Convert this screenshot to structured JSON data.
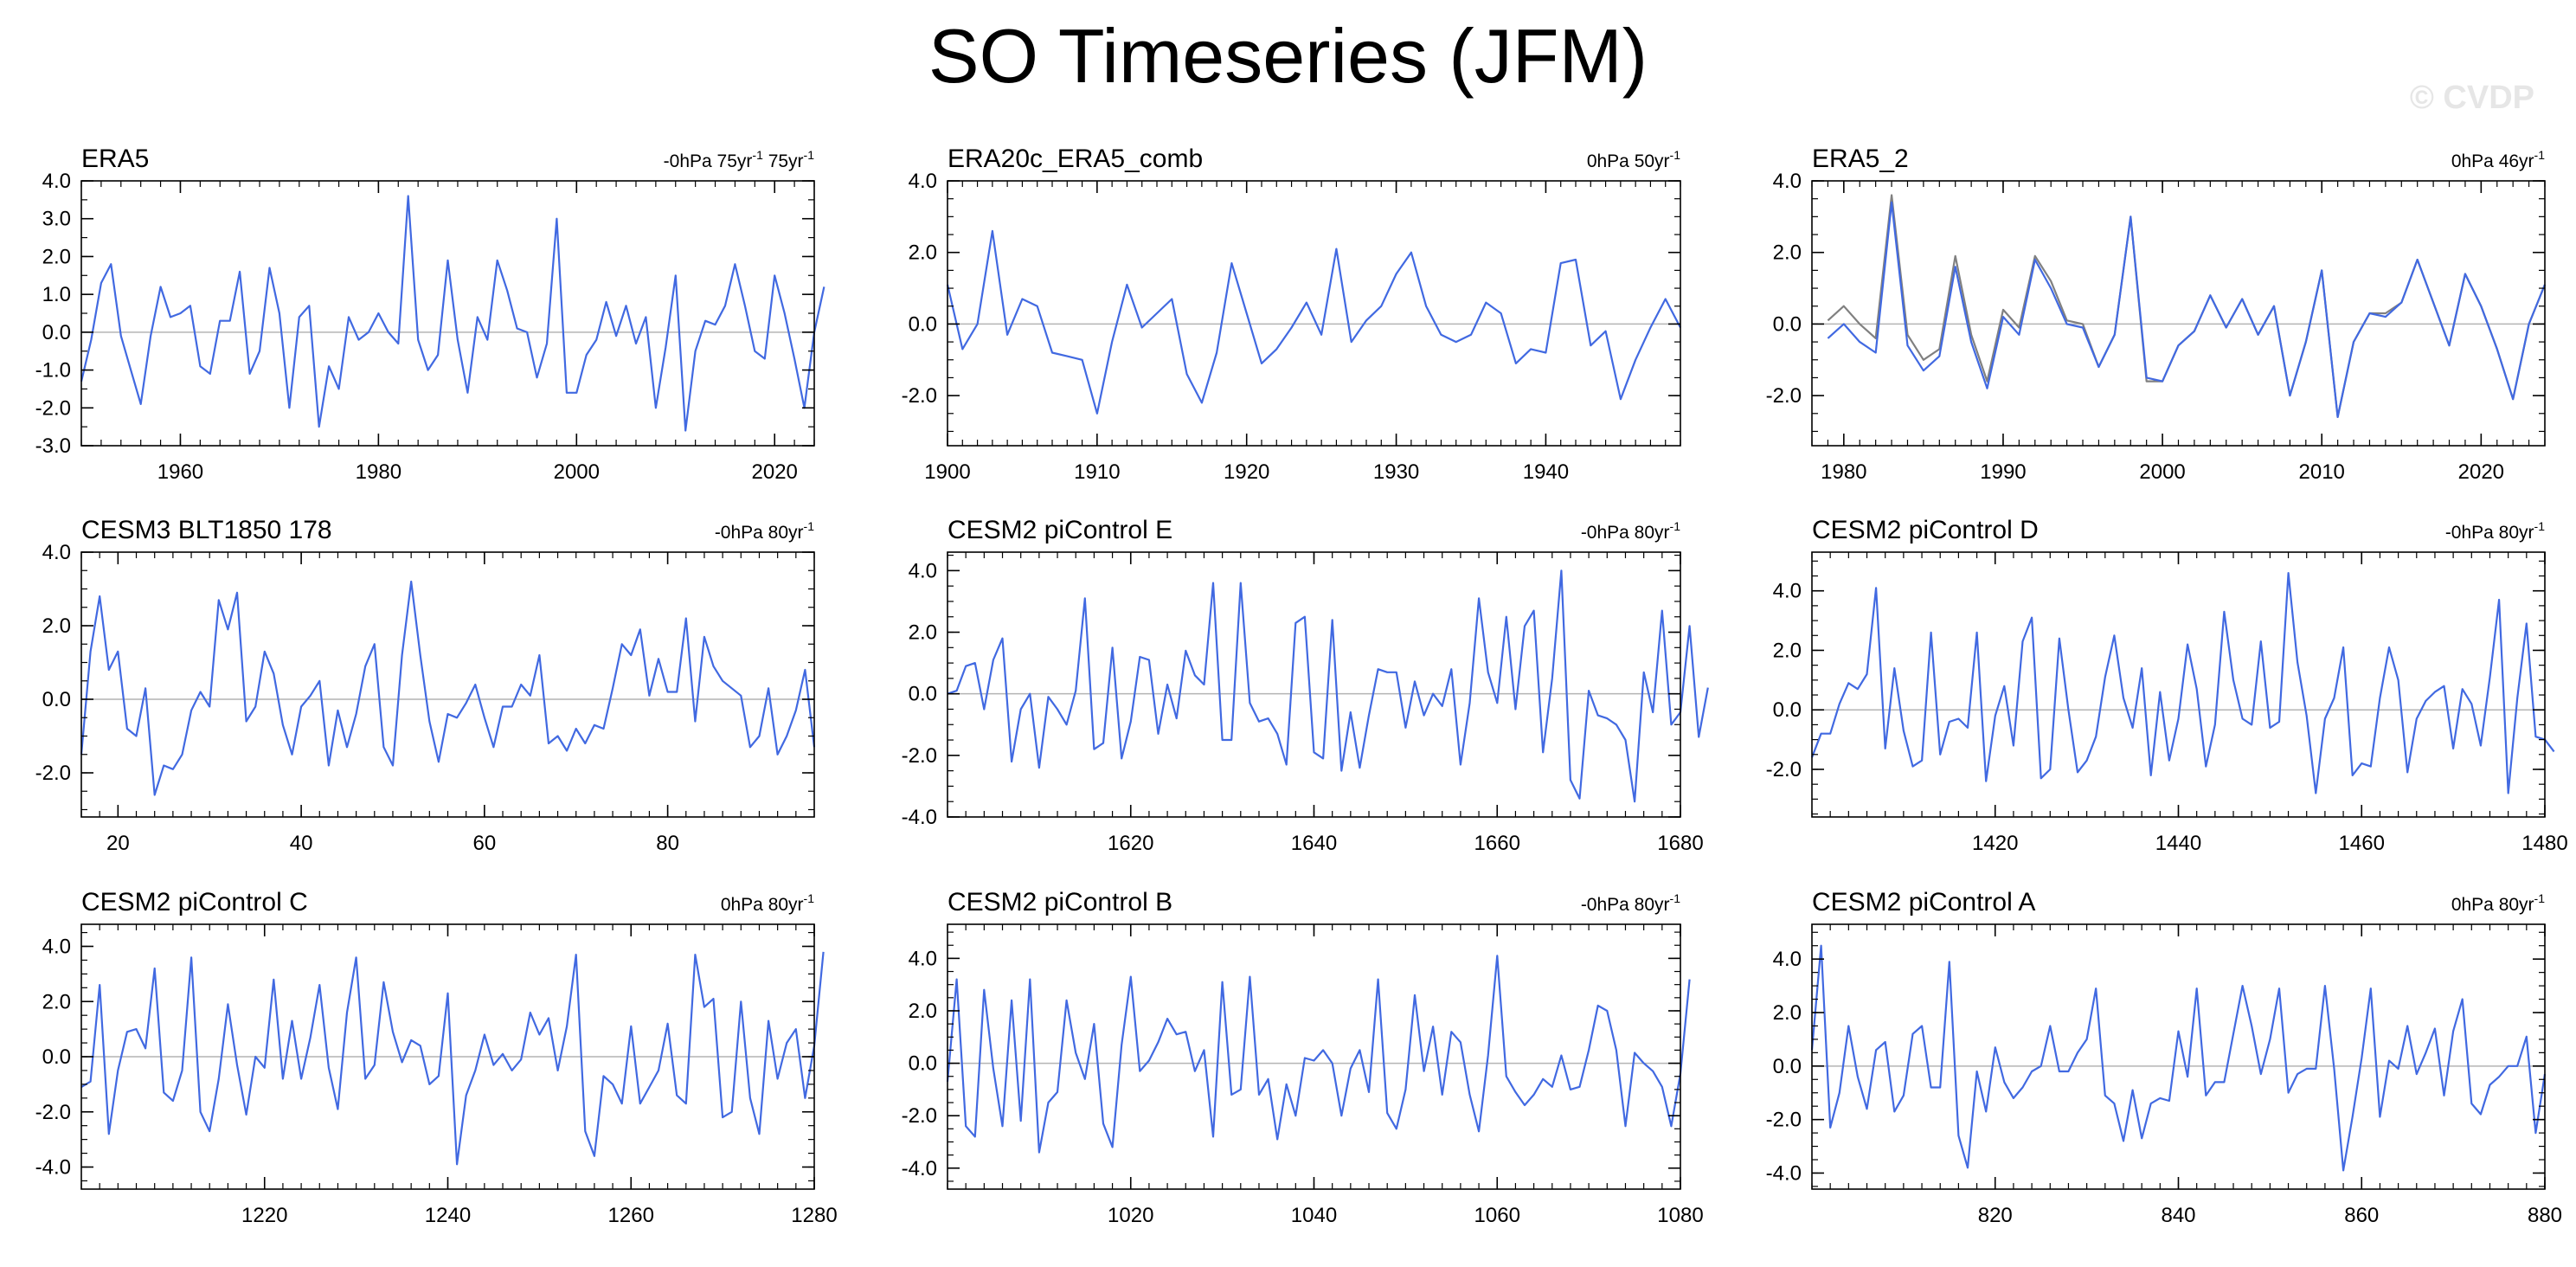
{
  "title": "SO Timeseries (JFM)",
  "watermark": "© CVDP",
  "colors": {
    "series": "#4169e1",
    "series2": "#808080",
    "zero": "#b4b4b4",
    "axis": "#000000"
  },
  "chart_data": [
    {
      "type": "line",
      "title": "ERA5",
      "right": [
        "-0hPa 75yr",
        "-1",
        " 75yr",
        "-1"
      ],
      "xlim": [
        1950,
        2024
      ],
      "ylim": [
        -3,
        4
      ],
      "xticks": [
        1960,
        1980,
        2000,
        2020
      ],
      "xticklabels": [
        "1960",
        "1980",
        "2000",
        "2020"
      ],
      "yticks": [
        -3,
        -2,
        -1,
        0,
        1,
        2,
        3,
        4
      ],
      "yticklabels": [
        "-3.0",
        "-2.0",
        "-1.0",
        "0.0",
        "1.0",
        "2.0",
        "3.0",
        "4.0"
      ],
      "series": [
        {
          "x0": 1950,
          "values": [
            -1.3,
            -0.2,
            1.3,
            1.8,
            -0.1,
            -1.0,
            -1.9,
            -0.1,
            1.2,
            0.4,
            0.5,
            0.7,
            -0.9,
            -1.1,
            0.3,
            0.3,
            1.6,
            -1.1,
            -0.5,
            1.7,
            0.5,
            -2.0,
            0.4,
            0.7,
            -2.5,
            -0.9,
            -1.5,
            0.4,
            -0.2,
            0.0,
            0.5,
            0.0,
            -0.3,
            3.6,
            -0.2,
            -1.0,
            -0.6,
            1.9,
            -0.2,
            -1.6,
            0.4,
            -0.2,
            1.9,
            1.1,
            0.1,
            0.0,
            -1.2,
            -0.3,
            3.0,
            -1.6,
            -1.6,
            -0.6,
            -0.2,
            0.8,
            -0.1,
            0.7,
            -0.3,
            0.4,
            -2.0,
            -0.4,
            1.5,
            -2.6,
            -0.5,
            0.3,
            0.2,
            0.7,
            1.8,
            0.7,
            -0.5,
            -0.7,
            1.5,
            0.5,
            -0.7,
            -2.0,
            0.0,
            1.2
          ]
        }
      ]
    },
    {
      "type": "line",
      "title": "ERA20c_ERA5_comb",
      "right": [
        "0hPa 50yr",
        "-1"
      ],
      "xlim": [
        1900,
        1949
      ],
      "ylim": [
        -3.4,
        4.0
      ],
      "xticks": [
        1900,
        1910,
        1920,
        1930,
        1940
      ],
      "xticklabels": [
        "1900",
        "1910",
        "1920",
        "1930",
        "1940"
      ],
      "yticks": [
        -2,
        0,
        2,
        4
      ],
      "yticklabels": [
        "-2.0",
        "0.0",
        "2.0",
        "4.0"
      ],
      "series": [
        {
          "x0": 1900,
          "values": [
            1.1,
            -0.7,
            0.0,
            2.6,
            -0.3,
            0.7,
            0.5,
            -0.8,
            -0.9,
            -1.0,
            -2.5,
            -0.5,
            1.1,
            -0.1,
            0.3,
            0.7,
            -1.4,
            -2.2,
            -0.8,
            1.7,
            0.3,
            -1.1,
            -0.7,
            -0.1,
            0.6,
            -0.3,
            2.1,
            -0.5,
            0.1,
            0.5,
            1.4,
            2.0,
            0.5,
            -0.3,
            -0.5,
            -0.3,
            0.6,
            0.3,
            -1.1,
            -0.7,
            -0.8,
            1.7,
            1.8,
            -0.6,
            -0.2,
            -2.1,
            -1.0,
            -0.1,
            0.7,
            -0.1
          ]
        }
      ]
    },
    {
      "type": "line",
      "title": "ERA5_2",
      "right": [
        "0hPa 46yr",
        "-1"
      ],
      "xlim": [
        1978,
        2024
      ],
      "ylim": [
        -3.4,
        4.0
      ],
      "xticks": [
        1980,
        1990,
        2000,
        2010,
        2020
      ],
      "xticklabels": [
        "1980",
        "1990",
        "2000",
        "2010",
        "2020"
      ],
      "yticks": [
        -2,
        0,
        2,
        4
      ],
      "yticklabels": [
        "-2.0",
        "0.0",
        "2.0",
        "4.0"
      ],
      "series": [
        {
          "x0": 1979,
          "color": "series2",
          "values": [
            0.1,
            0.5,
            0.0,
            -0.4,
            3.6,
            -0.3,
            -1.0,
            -0.7,
            1.9,
            -0.3,
            -1.6,
            0.4,
            -0.1,
            1.9,
            1.2,
            0.1,
            0.0,
            -1.2,
            -0.3,
            3.0,
            -1.6,
            -1.6,
            -0.6,
            -0.2,
            0.8,
            -0.1,
            0.7,
            -0.3,
            0.5,
            -2.0,
            -0.5,
            1.5,
            -2.6,
            -0.5,
            0.3,
            0.3,
            0.6,
            1.8,
            0.6,
            -0.6,
            1.4,
            0.5,
            -0.7,
            -2.1,
            0.0,
            1.1
          ]
        },
        {
          "x0": 1979,
          "values": [
            -0.4,
            0.0,
            -0.5,
            -0.8,
            3.4,
            -0.6,
            -1.3,
            -0.9,
            1.6,
            -0.5,
            -1.8,
            0.2,
            -0.3,
            1.8,
            1.0,
            0.0,
            -0.1,
            -1.2,
            -0.3,
            3.0,
            -1.5,
            -1.6,
            -0.6,
            -0.2,
            0.8,
            -0.1,
            0.7,
            -0.3,
            0.5,
            -2.0,
            -0.5,
            1.5,
            -2.6,
            -0.5,
            0.3,
            0.2,
            0.6,
            1.8,
            0.6,
            -0.6,
            1.4,
            0.5,
            -0.7,
            -2.1,
            0.0,
            1.1
          ]
        }
      ]
    },
    {
      "type": "line",
      "title": "CESM3 BLT1850 178",
      "right": [
        "-0hPa 80yr",
        "-1"
      ],
      "xlim": [
        16,
        96
      ],
      "ylim": [
        -3.2,
        4.0
      ],
      "xticks": [
        20,
        40,
        60,
        80
      ],
      "xticklabels": [
        "20",
        "40",
        "60",
        "80"
      ],
      "yticks": [
        -2,
        0,
        2,
        4
      ],
      "yticklabels": [
        "-2.0",
        "0.0",
        "2.0",
        "4.0"
      ],
      "series": [
        {
          "x0": 16,
          "values": [
            -1.5,
            1.3,
            2.8,
            0.8,
            1.3,
            -0.8,
            -1.0,
            0.3,
            -2.6,
            -1.8,
            -1.9,
            -1.5,
            -0.3,
            0.2,
            -0.2,
            2.7,
            1.9,
            2.9,
            -0.6,
            -0.2,
            1.3,
            0.7,
            -0.7,
            -1.5,
            -0.2,
            0.1,
            0.5,
            -1.8,
            -0.3,
            -1.3,
            -0.4,
            0.9,
            1.5,
            -1.3,
            -1.8,
            1.2,
            3.2,
            1.2,
            -0.6,
            -1.7,
            -0.4,
            -0.5,
            -0.1,
            0.4,
            -0.5,
            -1.3,
            -0.2,
            -0.2,
            0.4,
            0.1,
            1.2,
            -1.2,
            -1.0,
            -1.4,
            -0.8,
            -1.2,
            -0.7,
            -0.8,
            0.3,
            1.5,
            1.2,
            1.9,
            0.1,
            1.1,
            0.2,
            0.2,
            2.2,
            -0.6,
            1.7,
            0.9,
            0.5,
            0.3,
            0.1,
            -1.3,
            -1.0,
            0.3,
            -1.5,
            -1.0,
            -0.3,
            0.8,
            -1.3
          ]
        }
      ]
    },
    {
      "type": "line",
      "title": "CESM2 piControl E",
      "right": [
        "-0hPa 80yr",
        "-1"
      ],
      "xlim": [
        1600,
        1680
      ],
      "ylim": [
        -4.0,
        4.6
      ],
      "xticks": [
        1620,
        1640,
        1660,
        1680
      ],
      "xticklabels": [
        "1620",
        "1640",
        "1660",
        "1680"
      ],
      "yticks": [
        -4,
        -2,
        0,
        2,
        4
      ],
      "yticklabels": [
        "-4.0",
        "-2.0",
        "0.0",
        "2.0",
        "4.0"
      ],
      "series": [
        {
          "x0": 1600,
          "values": [
            0.0,
            0.1,
            0.9,
            1.0,
            -0.5,
            1.1,
            1.8,
            -2.2,
            -0.5,
            0.0,
            -2.4,
            -0.1,
            -0.5,
            -1.0,
            0.1,
            3.1,
            -1.8,
            -1.6,
            1.5,
            -2.1,
            -0.9,
            1.2,
            1.1,
            -1.3,
            0.3,
            -0.8,
            1.4,
            0.6,
            0.3,
            3.6,
            -1.5,
            -1.5,
            3.6,
            -0.3,
            -0.9,
            -0.8,
            -1.3,
            -2.3,
            2.3,
            2.5,
            -1.9,
            -2.1,
            2.4,
            -2.5,
            -0.6,
            -2.4,
            -0.7,
            0.8,
            0.7,
            0.7,
            -1.1,
            0.4,
            -0.7,
            0.0,
            -0.4,
            0.8,
            -2.3,
            -0.3,
            3.1,
            0.7,
            -0.3,
            2.5,
            -0.5,
            2.2,
            2.7,
            -1.9,
            0.5,
            4.0,
            -2.8,
            -3.4,
            0.1,
            -0.7,
            -0.8,
            -1.0,
            -1.5,
            -3.5,
            0.7,
            -0.6,
            2.7,
            -1.0,
            -0.6,
            2.2,
            -1.4,
            0.2
          ]
        }
      ]
    },
    {
      "type": "line",
      "title": "CESM2 piControl D",
      "right": [
        "-0hPa 80yr",
        "-1"
      ],
      "xlim": [
        1400,
        1480
      ],
      "ylim": [
        -3.6,
        5.3
      ],
      "xticks": [
        1420,
        1440,
        1460,
        1480
      ],
      "xticklabels": [
        "1420",
        "1440",
        "1460",
        "1480"
      ],
      "yticks": [
        -2,
        0,
        2,
        4
      ],
      "yticklabels": [
        "-2.0",
        "0.0",
        "2.0",
        "4.0"
      ],
      "series": [
        {
          "x0": 1400,
          "values": [
            -1.6,
            -0.8,
            -0.8,
            0.2,
            0.9,
            0.7,
            1.2,
            4.1,
            -1.3,
            1.4,
            -0.7,
            -1.9,
            -1.7,
            2.6,
            -1.5,
            -0.4,
            -0.3,
            -0.6,
            2.6,
            -2.4,
            -0.2,
            0.8,
            -1.2,
            2.3,
            3.1,
            -2.3,
            -2.0,
            2.4,
            0.0,
            -2.1,
            -1.7,
            -0.9,
            1.1,
            2.5,
            0.4,
            -0.6,
            1.4,
            -2.2,
            0.6,
            -1.7,
            -0.3,
            2.2,
            0.7,
            -1.9,
            -0.5,
            3.3,
            1.0,
            -0.3,
            -0.5,
            2.3,
            -0.6,
            -0.4,
            4.6,
            1.6,
            -0.2,
            -2.8,
            -0.3,
            0.4,
            2.1,
            -2.2,
            -1.8,
            -1.9,
            0.4,
            2.1,
            1.0,
            -2.1,
            -0.3,
            0.3,
            0.6,
            0.8,
            -1.3,
            0.7,
            0.2,
            -1.2,
            1.1,
            3.7,
            -2.8,
            0.4,
            2.9,
            -0.9,
            -1.0,
            -1.4
          ]
        }
      ]
    },
    {
      "type": "line",
      "title": "CESM2 piControl C",
      "right": [
        "0hPa 80yr",
        "-1"
      ],
      "xlim": [
        1200,
        1280
      ],
      "ylim": [
        -4.8,
        4.8
      ],
      "xticks": [
        1220,
        1240,
        1260,
        1280
      ],
      "xticklabels": [
        "1220",
        "1240",
        "1260",
        "1280"
      ],
      "yticks": [
        -4,
        -2,
        0,
        2,
        4
      ],
      "yticklabels": [
        "-4.0",
        "-2.0",
        "0.0",
        "2.0",
        "4.0"
      ],
      "series": [
        {
          "x0": 1200,
          "values": [
            -1.1,
            -0.9,
            2.6,
            -2.8,
            -0.5,
            0.9,
            1.0,
            0.3,
            3.2,
            -1.3,
            -1.6,
            -0.5,
            3.6,
            -2.0,
            -2.7,
            -0.8,
            1.9,
            -0.3,
            -2.1,
            0.0,
            -0.4,
            2.8,
            -0.8,
            1.3,
            -0.8,
            0.7,
            2.6,
            -0.4,
            -1.9,
            1.6,
            3.6,
            -0.8,
            -0.3,
            2.7,
            0.9,
            -0.2,
            0.6,
            0.4,
            -1.0,
            -0.7,
            2.3,
            -3.9,
            -1.4,
            -0.5,
            0.8,
            -0.3,
            0.1,
            -0.5,
            -0.1,
            1.6,
            0.8,
            1.4,
            -0.5,
            1.1,
            3.7,
            -2.7,
            -3.6,
            -0.7,
            -1.0,
            -1.7,
            1.1,
            -1.7,
            -1.1,
            -0.5,
            1.2,
            -1.4,
            -1.7,
            3.7,
            1.8,
            2.1,
            -2.2,
            -2.0,
            2.0,
            -1.5,
            -2.8,
            1.3,
            -0.8,
            0.5,
            1.0,
            -1.5,
            0.4,
            3.8
          ]
        }
      ]
    },
    {
      "type": "line",
      "title": "CESM2 piControl B",
      "right": [
        "-0hPa 80yr",
        "-1"
      ],
      "xlim": [
        1000,
        1080
      ],
      "ylim": [
        -4.8,
        5.3
      ],
      "xticks": [
        1020,
        1040,
        1060,
        1080
      ],
      "xticklabels": [
        "1020",
        "1040",
        "1060",
        "1080"
      ],
      "yticks": [
        -4,
        -2,
        0,
        2,
        4
      ],
      "yticklabels": [
        "-4.0",
        "-2.0",
        "0.0",
        "2.0",
        "4.0"
      ],
      "series": [
        {
          "x0": 1000,
          "values": [
            -0.7,
            3.2,
            -2.4,
            -2.8,
            2.8,
            -0.2,
            -2.4,
            2.4,
            -2.2,
            3.2,
            -3.4,
            -1.5,
            -1.1,
            2.4,
            0.4,
            -0.6,
            1.5,
            -2.3,
            -3.2,
            0.7,
            3.3,
            -0.3,
            0.1,
            0.8,
            1.7,
            1.1,
            1.2,
            -0.3,
            0.5,
            -2.8,
            3.1,
            -1.2,
            -1.0,
            3.3,
            -1.2,
            -0.6,
            -2.9,
            -0.8,
            -2.0,
            0.2,
            0.1,
            0.5,
            0.0,
            -2.0,
            -0.2,
            0.5,
            -1.1,
            3.2,
            -1.9,
            -2.5,
            -1.0,
            2.6,
            -0.3,
            1.4,
            -1.2,
            1.2,
            0.8,
            -1.2,
            -2.6,
            0.3,
            4.1,
            -0.5,
            -1.1,
            -1.6,
            -1.2,
            -0.6,
            -0.9,
            0.3,
            -1.0,
            -0.9,
            0.5,
            2.2,
            2.0,
            0.5,
            -2.4,
            0.4,
            0.0,
            -0.3,
            -0.9,
            -2.4,
            -0.4,
            3.2
          ]
        }
      ]
    },
    {
      "type": "line",
      "title": "CESM2 piControl A",
      "right": [
        "0hPa 80yr",
        "-1"
      ],
      "xlim": [
        800,
        880
      ],
      "ylim": [
        -4.6,
        5.3
      ],
      "xticks": [
        820,
        840,
        860,
        880
      ],
      "xticklabels": [
        "820",
        "840",
        "860",
        "880"
      ],
      "yticks": [
        -4,
        -2,
        0,
        2,
        4
      ],
      "yticklabels": [
        "-4.0",
        "-2.0",
        "0.0",
        "2.0",
        "4.0"
      ],
      "series": [
        {
          "x0": 800,
          "values": [
            0.6,
            4.5,
            -2.3,
            -1.0,
            1.5,
            -0.4,
            -1.6,
            0.6,
            0.9,
            -1.7,
            -1.1,
            1.2,
            1.5,
            -0.8,
            -0.8,
            3.9,
            -2.6,
            -3.8,
            -0.2,
            -1.7,
            0.7,
            -0.6,
            -1.2,
            -0.8,
            -0.2,
            0.0,
            1.5,
            -0.2,
            -0.2,
            0.5,
            1.0,
            2.9,
            -1.1,
            -1.4,
            -2.8,
            -0.9,
            -2.7,
            -1.4,
            -1.2,
            -1.3,
            1.3,
            -0.4,
            2.9,
            -1.1,
            -0.6,
            -0.6,
            1.2,
            3.0,
            1.5,
            -0.3,
            1.0,
            2.9,
            -1.0,
            -0.3,
            -0.1,
            -0.1,
            3.0,
            -0.1,
            -3.9,
            -1.9,
            0.3,
            2.9,
            -1.9,
            0.2,
            -0.1,
            1.5,
            -0.3,
            0.5,
            1.4,
            -1.1,
            1.3,
            2.5,
            -1.4,
            -1.8,
            -0.7,
            -0.4,
            0.0,
            0.0,
            1.1,
            -2.5,
            -0.3
          ]
        }
      ]
    }
  ]
}
